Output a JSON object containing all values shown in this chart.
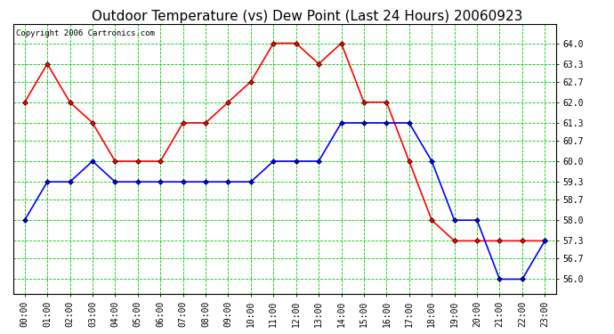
{
  "title": "Outdoor Temperature (vs) Dew Point (Last 24 Hours) 20060923",
  "copyright": "Copyright 2006 Cartronics.com",
  "hours": [
    "00:00",
    "01:00",
    "02:00",
    "03:00",
    "04:00",
    "05:00",
    "06:00",
    "07:00",
    "08:00",
    "09:00",
    "10:00",
    "11:00",
    "12:00",
    "13:00",
    "14:00",
    "15:00",
    "16:00",
    "17:00",
    "18:00",
    "19:00",
    "20:00",
    "21:00",
    "22:00",
    "23:00"
  ],
  "temp": [
    62.0,
    63.3,
    62.0,
    61.3,
    60.0,
    60.0,
    60.0,
    61.3,
    61.3,
    62.0,
    62.7,
    64.0,
    64.0,
    63.3,
    64.0,
    62.0,
    62.0,
    60.0,
    58.0,
    57.3,
    57.3,
    57.3,
    57.3,
    57.3
  ],
  "dew": [
    58.0,
    59.3,
    59.3,
    60.0,
    59.3,
    59.3,
    59.3,
    59.3,
    59.3,
    59.3,
    59.3,
    60.0,
    60.0,
    60.0,
    61.3,
    61.3,
    61.3,
    61.3,
    60.0,
    58.0,
    58.0,
    56.0,
    56.0,
    57.3
  ],
  "temp_color": "#ff0000",
  "dew_color": "#0000ff",
  "bg_color": "#ffffff",
  "plot_bg": "#ffffff",
  "grid_color": "#00cc00",
  "ylim": [
    55.5,
    64.65
  ],
  "yticks": [
    56.0,
    56.7,
    57.3,
    58.0,
    58.7,
    59.3,
    60.0,
    60.7,
    61.3,
    62.0,
    62.7,
    63.3,
    64.0
  ],
  "title_fontsize": 11,
  "copyright_fontsize": 6.5,
  "axis_fontsize": 7,
  "markersize": 3,
  "linewidth": 1.2
}
